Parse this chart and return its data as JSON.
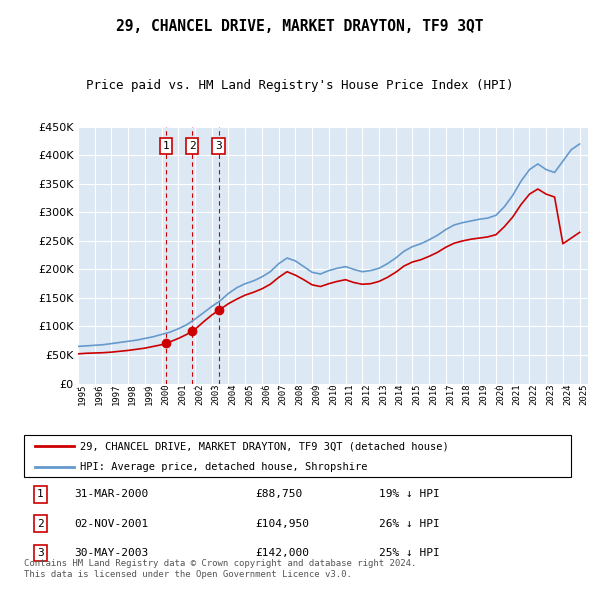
{
  "title": "29, CHANCEL DRIVE, MARKET DRAYTON, TF9 3QT",
  "subtitle": "Price paid vs. HM Land Registry's House Price Index (HPI)",
  "plot_bg_color": "#dce9f5",
  "legend_label_red": "29, CHANCEL DRIVE, MARKET DRAYTON, TF9 3QT (detached house)",
  "legend_label_blue": "HPI: Average price, detached house, Shropshire",
  "footer": "Contains HM Land Registry data © Crown copyright and database right 2024.\nThis data is licensed under the Open Government Licence v3.0.",
  "transactions": [
    {
      "num": 1,
      "date": "31-MAR-2000",
      "price": 88750,
      "pct": "19%",
      "dir": "↓",
      "x_year": 2000.25
    },
    {
      "num": 2,
      "date": "02-NOV-2001",
      "price": 104950,
      "pct": "26%",
      "dir": "↓",
      "x_year": 2001.83
    },
    {
      "num": 3,
      "date": "30-MAY-2003",
      "price": 142000,
      "pct": "25%",
      "dir": "↓",
      "x_year": 2003.41
    }
  ],
  "hpi_years": [
    1995,
    1995.5,
    1996,
    1996.5,
    1997,
    1997.5,
    1998,
    1998.5,
    1999,
    1999.5,
    2000,
    2000.5,
    2001,
    2001.5,
    2002,
    2002.5,
    2003,
    2003.5,
    2004,
    2004.5,
    2005,
    2005.5,
    2006,
    2006.5,
    2007,
    2007.5,
    2008,
    2008.5,
    2009,
    2009.5,
    2010,
    2010.5,
    2011,
    2011.5,
    2012,
    2012.5,
    2013,
    2013.5,
    2014,
    2014.5,
    2015,
    2015.5,
    2016,
    2016.5,
    2017,
    2017.5,
    2018,
    2018.5,
    2019,
    2019.5,
    2020,
    2020.5,
    2021,
    2021.5,
    2022,
    2022.5,
    2023,
    2023.5,
    2024,
    2024.5,
    2025
  ],
  "hpi_values": [
    65000,
    66000,
    67000,
    68000,
    70000,
    72000,
    74000,
    76000,
    79000,
    82000,
    86000,
    90000,
    96000,
    103000,
    113000,
    124000,
    135000,
    145000,
    158000,
    168000,
    175000,
    180000,
    187000,
    196000,
    210000,
    220000,
    215000,
    205000,
    195000,
    192000,
    198000,
    202000,
    205000,
    200000,
    196000,
    198000,
    202000,
    210000,
    220000,
    232000,
    240000,
    245000,
    252000,
    260000,
    270000,
    278000,
    282000,
    285000,
    288000,
    290000,
    295000,
    310000,
    330000,
    355000,
    375000,
    385000,
    375000,
    370000,
    390000,
    410000,
    420000
  ],
  "red_years": [
    1995,
    1995.5,
    1996,
    1996.5,
    1997,
    1997.5,
    1998,
    1998.5,
    1999,
    1999.5,
    2000,
    2000.5,
    2001,
    2001.5,
    2002,
    2002.5,
    2003,
    2003.5,
    2004,
    2004.5,
    2005,
    2005.5,
    2006,
    2006.5,
    2007,
    2007.5,
    2008,
    2008.5,
    2009,
    2009.5,
    2010,
    2010.5,
    2011,
    2011.5,
    2012,
    2012.5,
    2013,
    2013.5,
    2014,
    2014.5,
    2015,
    2015.5,
    2016,
    2016.5,
    2017,
    2017.5,
    2018,
    2018.5,
    2019,
    2019.5,
    2020,
    2020.5,
    2021,
    2021.5,
    2022,
    2022.5,
    2023,
    2023.5,
    2024,
    2024.5,
    2025
  ],
  "red_values": [
    52000,
    53000,
    53500,
    54000,
    55000,
    56500,
    58000,
    60000,
    62000,
    65000,
    68000,
    73000,
    79000,
    86000,
    95000,
    108000,
    120000,
    130000,
    140000,
    148000,
    155000,
    160000,
    166000,
    174000,
    186000,
    196000,
    190000,
    182000,
    173000,
    170000,
    175000,
    179000,
    182000,
    177000,
    174000,
    175000,
    179000,
    186000,
    195000,
    206000,
    213000,
    217000,
    223000,
    230000,
    239000,
    246000,
    250000,
    253000,
    255000,
    257000,
    261000,
    275000,
    292000,
    314000,
    332000,
    341000,
    332000,
    327000,
    245000,
    255000,
    265000
  ],
  "ylim": [
    0,
    450000
  ],
  "xlim": [
    1995,
    2025.5
  ],
  "yticks": [
    0,
    50000,
    100000,
    150000,
    200000,
    250000,
    300000,
    350000,
    400000,
    450000
  ],
  "xtick_years": [
    1995,
    1996,
    1997,
    1998,
    1999,
    2000,
    2001,
    2002,
    2003,
    2004,
    2005,
    2006,
    2007,
    2008,
    2009,
    2010,
    2011,
    2012,
    2013,
    2014,
    2015,
    2016,
    2017,
    2018,
    2019,
    2020,
    2021,
    2022,
    2023,
    2024,
    2025
  ],
  "vline_color": "#cc0000",
  "hpi_color": "#6699cc",
  "red_color": "#cc0000",
  "grid_color": "#ffffff",
  "marker_color": "#cc0000"
}
